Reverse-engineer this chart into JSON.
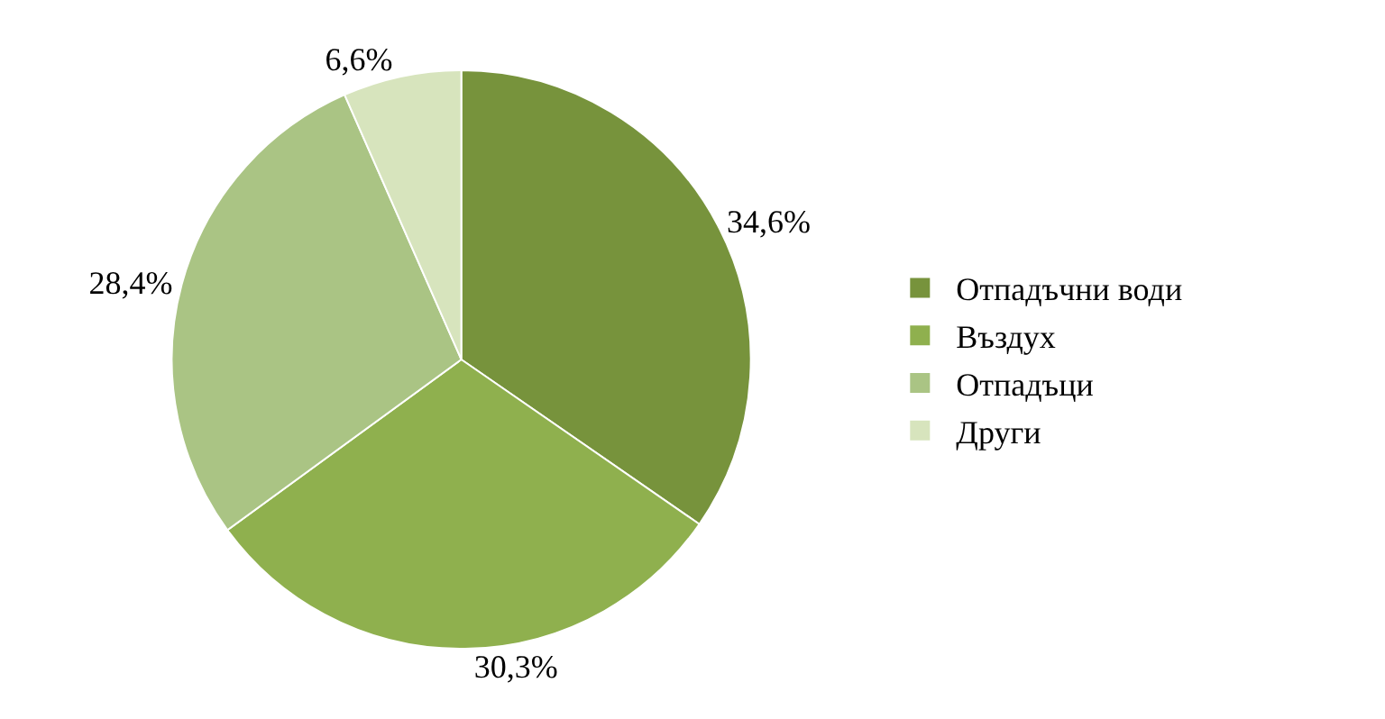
{
  "chart_data": {
    "type": "pie",
    "categories": [
      "Отпадъчни води",
      "Въздух",
      "Отпадъци",
      "Други"
    ],
    "values": [
      34.6,
      30.3,
      28.4,
      6.6
    ],
    "value_labels": [
      "34,6%",
      "30,3%",
      "28,4%",
      "6,6%"
    ],
    "colors": [
      "#77933c",
      "#8fb04e",
      "#aac484",
      "#d7e4bd"
    ],
    "legend": "right"
  }
}
